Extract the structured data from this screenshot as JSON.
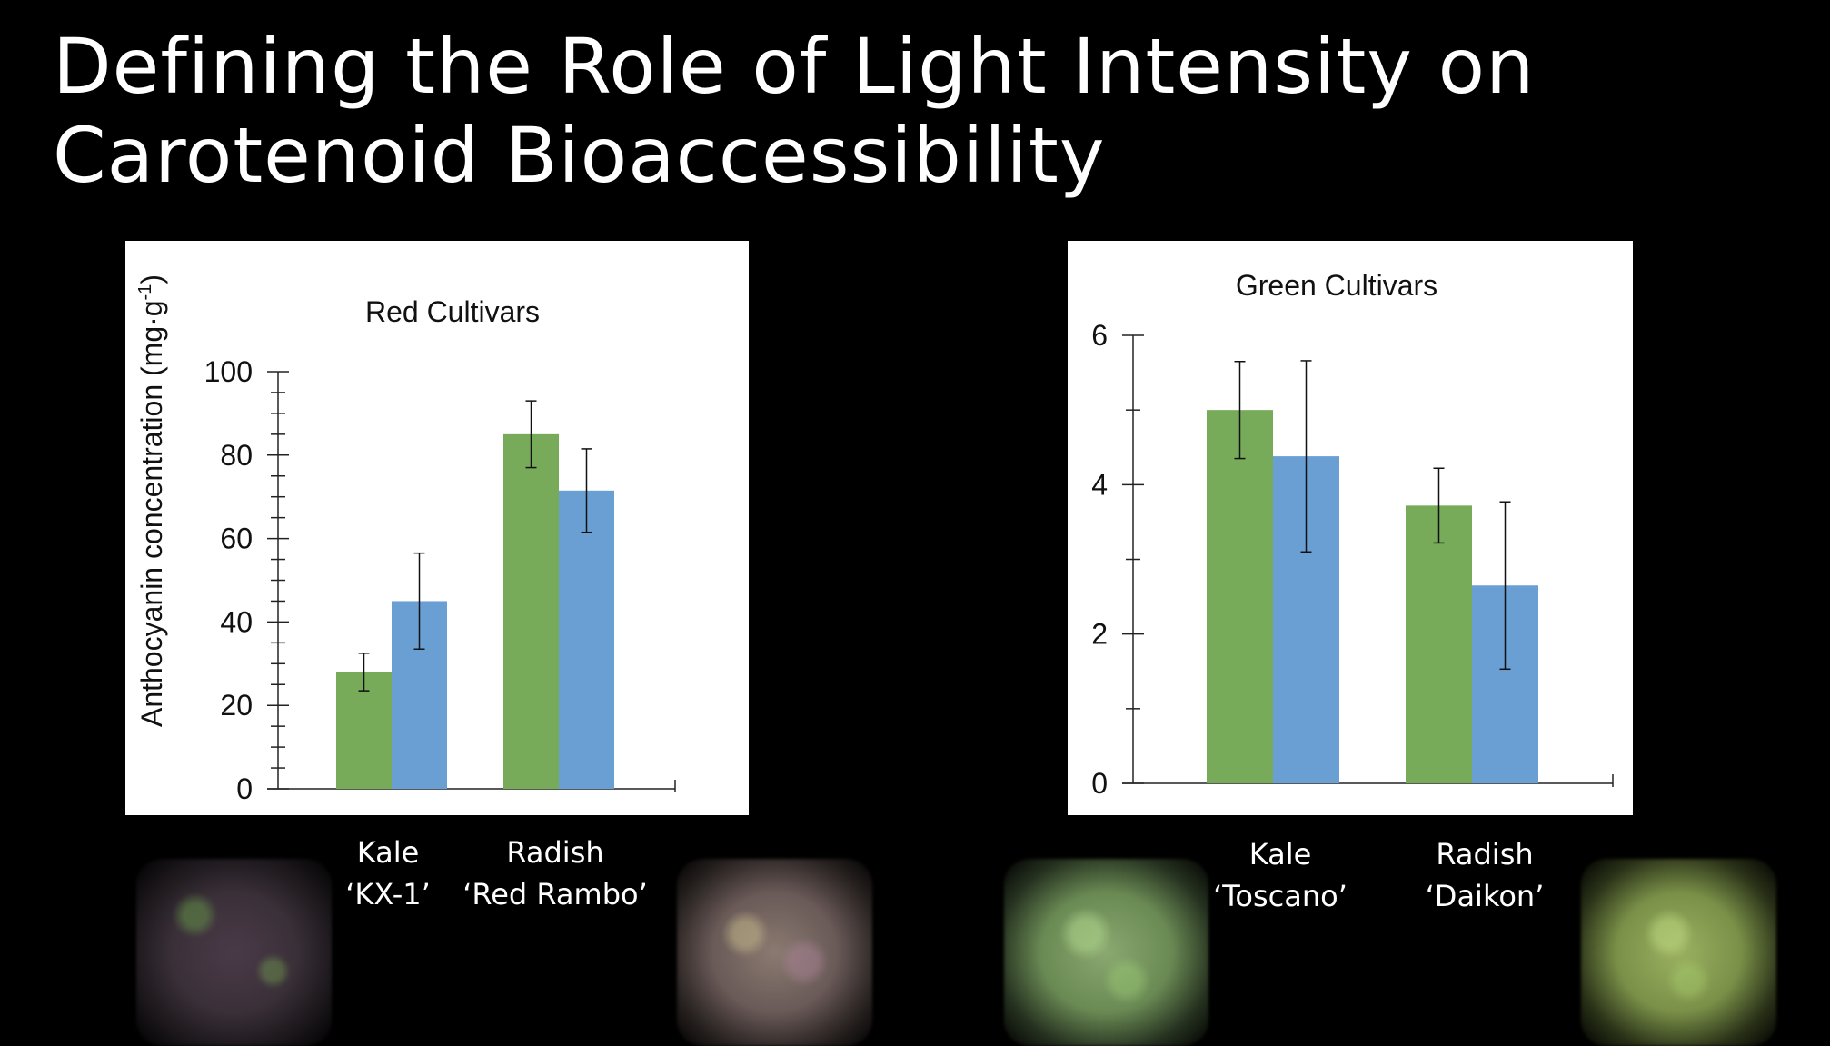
{
  "slide": {
    "title_line1": "Defining the Role of Light Intensity on",
    "title_line2": "Carotenoid Bioaccessibility"
  },
  "colors": {
    "series_1": "#77ab59",
    "series_2": "#6a9fd4"
  },
  "images": [
    {
      "name": "red-kale-microgreens-photo",
      "description": "purple kale microgreens"
    },
    {
      "name": "red-radish-microgreens-photo",
      "description": "red rambo radish microgreens"
    },
    {
      "name": "green-kale-microgreens-photo",
      "description": "toscano kale microgreens"
    },
    {
      "name": "green-radish-microgreens-photo",
      "description": "daikon radish microgreens"
    }
  ],
  "chart_data": [
    {
      "type": "bar",
      "title": "Red Cultivars",
      "ylabel_main": "Anthocyanin concentration (mg·g",
      "ylabel_sup": "-1",
      "ylabel_end": ")",
      "categories": [
        {
          "line1": "Kale",
          "line2": "‘KX-1’"
        },
        {
          "line1": "Radish",
          "line2": "‘Red Rambo’"
        }
      ],
      "series": [
        {
          "values": [
            28,
            85
          ],
          "errors": [
            4.5,
            8
          ]
        },
        {
          "values": [
            45,
            71.5
          ],
          "errors": [
            11.5,
            10
          ]
        }
      ],
      "ylim": [
        0,
        100
      ],
      "yticks": [
        "0",
        "20",
        "40",
        "60",
        "80",
        "100"
      ],
      "minor_step": 5,
      "major_step": 20,
      "legend": "none",
      "grid": false
    },
    {
      "type": "bar",
      "title": "Green Cultivars",
      "categories": [
        {
          "line1": "Kale",
          "line2": "‘Toscano’"
        },
        {
          "line1": "Radish",
          "line2": "‘Daikon’"
        }
      ],
      "series": [
        {
          "values": [
            5.0,
            3.72
          ],
          "errors": [
            0.65,
            0.5
          ]
        },
        {
          "values": [
            4.38,
            2.65
          ],
          "errors": [
            1.28,
            1.12
          ]
        }
      ],
      "ylim": [
        0,
        6
      ],
      "yticks": [
        "0",
        "2",
        "4",
        "6"
      ],
      "minor_step": 1,
      "major_step": 2,
      "legend": "none",
      "grid": false
    }
  ]
}
